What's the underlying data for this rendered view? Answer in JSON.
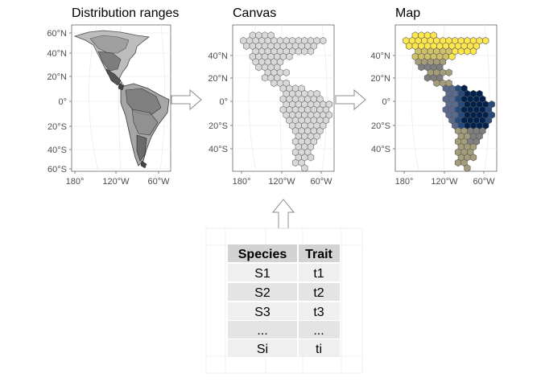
{
  "panels": [
    {
      "id": "ranges",
      "title": "Distribution ranges"
    },
    {
      "id": "canvas",
      "title": "Canvas"
    },
    {
      "id": "map",
      "title": "Map"
    }
  ],
  "axes": {
    "ranges_y_ticks": [
      "60°N",
      "40°N",
      "20°N",
      "0°",
      "20°S",
      "40°S",
      "60°S"
    ],
    "grid_y_ticks": [
      "40°N",
      "20°N",
      "0°",
      "20°S",
      "40°S"
    ],
    "x_ticks": [
      "180°",
      "120°W",
      "60°W"
    ]
  },
  "table": {
    "headers": [
      "Species",
      "Trait"
    ],
    "rows": [
      [
        "S1",
        "t1"
      ],
      [
        "S2",
        "t2"
      ],
      [
        "S3",
        "t3"
      ],
      [
        "...",
        "..."
      ],
      [
        "Si",
        "ti"
      ]
    ]
  },
  "colors": {
    "hex_fill_canvas": "#d9d9d9",
    "palette_map": [
      "#00204d",
      "#274a7c",
      "#5a6a8f",
      "#7f7f7f",
      "#a59d7a",
      "#cfc06a",
      "#fde74c"
    ]
  }
}
